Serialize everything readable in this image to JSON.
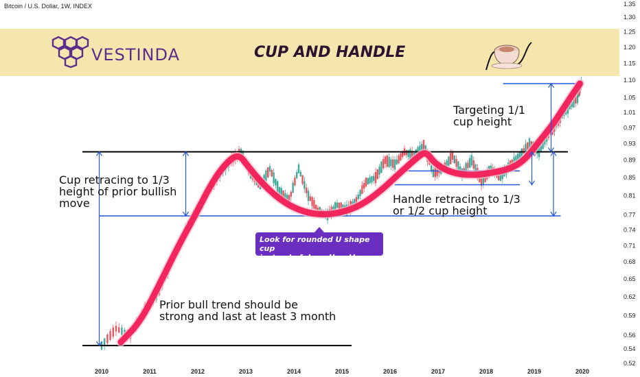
{
  "ticker": "Bitcoin / U.S. Dollar, 1W, INDEX",
  "banner": {
    "brand": "VESTINDA",
    "title": "CUP AND HANDLE",
    "brand_color": "#5e2c8c",
    "background": "#f5e6ad"
  },
  "annotations": {
    "cup_retracing": [
      "Cup retracing to 1/3",
      "height of prior bullish",
      "move"
    ],
    "targeting": [
      "Targeting 1/1",
      "cup height"
    ],
    "handle_retracing": [
      "Handle retracing to 1/3",
      "or 1/2 cup height"
    ],
    "prior_bull": [
      "Prior bull trend should be",
      "strong and last at least 3 month"
    ],
    "note": [
      "Look for rounded U shape cup",
      "instead of deep U or V shapes"
    ]
  },
  "chart_data": {
    "type": "line",
    "x_ticks": [
      "2010",
      "2011",
      "2012",
      "2013",
      "2014",
      "2015",
      "2016",
      "2017",
      "2018",
      "2019",
      "2020"
    ],
    "y_ticks": [
      "1.35",
      "1.30",
      "1.25",
      "1.20",
      "1.15",
      "1.10",
      "1.05",
      "1.01",
      "0.97",
      "0.93",
      "0.89",
      "0.85",
      "0.81",
      "0.77",
      "0.74",
      "0.71",
      "0.68",
      "0.65",
      "0.62",
      "0.59",
      "0.56",
      "0.54",
      "0.52"
    ],
    "y_scale": "log",
    "ylim": [
      0.52,
      1.35
    ],
    "xlim": [
      2009.8,
      2020.2
    ],
    "series": [
      {
        "color": "#f2265c",
        "points": [
          [
            2010.4,
            0.55
          ],
          [
            2010.8,
            0.58
          ],
          [
            2011.2,
            0.64
          ],
          [
            2011.6,
            0.71
          ],
          [
            2011.95,
            0.77
          ],
          [
            2012.3,
            0.84
          ],
          [
            2012.6,
            0.885
          ],
          [
            2012.85,
            0.905
          ],
          [
            2013.05,
            0.875
          ],
          [
            2013.4,
            0.83
          ],
          [
            2013.8,
            0.795
          ],
          [
            2014.2,
            0.776
          ],
          [
            2014.6,
            0.77
          ],
          [
            2015.0,
            0.775
          ],
          [
            2015.4,
            0.79
          ],
          [
            2015.8,
            0.82
          ],
          [
            2016.2,
            0.86
          ],
          [
            2016.6,
            0.9
          ],
          [
            2016.75,
            0.91
          ],
          [
            2016.95,
            0.88
          ],
          [
            2017.3,
            0.86
          ],
          [
            2017.7,
            0.855
          ],
          [
            2018.1,
            0.86
          ],
          [
            2018.5,
            0.87
          ],
          [
            2018.8,
            0.89
          ],
          [
            2019.1,
            0.935
          ],
          [
            2019.4,
            0.98
          ],
          [
            2019.7,
            1.04
          ],
          [
            2019.95,
            1.09
          ]
        ]
      }
    ],
    "price_path": [
      [
        2010.0,
        0.545
      ],
      [
        2010.3,
        0.57
      ],
      [
        2010.6,
        0.56
      ],
      [
        2010.9,
        0.6
      ],
      [
        2011.2,
        0.63
      ],
      [
        2011.5,
        0.69
      ],
      [
        2011.8,
        0.75
      ],
      [
        2012.1,
        0.8
      ],
      [
        2012.4,
        0.85
      ],
      [
        2012.7,
        0.89
      ],
      [
        2012.9,
        0.91
      ],
      [
        2013.1,
        0.86
      ],
      [
        2013.3,
        0.83
      ],
      [
        2013.5,
        0.87
      ],
      [
        2013.7,
        0.82
      ],
      [
        2013.9,
        0.8
      ],
      [
        2014.1,
        0.87
      ],
      [
        2014.3,
        0.81
      ],
      [
        2014.5,
        0.78
      ],
      [
        2014.7,
        0.77
      ],
      [
        2014.9,
        0.79
      ],
      [
        2015.1,
        0.78
      ],
      [
        2015.3,
        0.8
      ],
      [
        2015.5,
        0.84
      ],
      [
        2015.7,
        0.85
      ],
      [
        2015.9,
        0.89
      ],
      [
        2016.1,
        0.88
      ],
      [
        2016.3,
        0.91
      ],
      [
        2016.5,
        0.9
      ],
      [
        2016.7,
        0.925
      ],
      [
        2016.9,
        0.86
      ],
      [
        2017.1,
        0.87
      ],
      [
        2017.3,
        0.9
      ],
      [
        2017.5,
        0.86
      ],
      [
        2017.7,
        0.89
      ],
      [
        2017.9,
        0.84
      ],
      [
        2018.1,
        0.87
      ],
      [
        2018.3,
        0.85
      ],
      [
        2018.5,
        0.88
      ],
      [
        2018.7,
        0.9
      ],
      [
        2018.9,
        0.93
      ],
      [
        2019.1,
        0.91
      ],
      [
        2019.3,
        0.95
      ],
      [
        2019.5,
        0.99
      ],
      [
        2019.7,
        1.02
      ],
      [
        2019.9,
        1.05
      ],
      [
        2020.0,
        1.1
      ]
    ],
    "levels": [
      {
        "name": "cup_rim",
        "y": 0.91,
        "x": [
          2009.6,
          2019.7
        ],
        "color": "#000000"
      },
      {
        "name": "prior_low",
        "y": 0.545,
        "x": [
          2009.6,
          2015.2
        ],
        "color": "#000000"
      },
      {
        "name": "cup_bottom",
        "y": 0.768,
        "x": [
          2009.95,
          2019.55
        ],
        "color": "#2456d6"
      },
      {
        "name": "target",
        "y": 1.09,
        "x": [
          2018.35,
          2020.0
        ],
        "color": "#2456d6"
      },
      {
        "name": "handle_top",
        "y": 0.865,
        "x": [
          2016.3,
          2018.7
        ],
        "color": "#2456d6"
      },
      {
        "name": "handle_low",
        "y": 0.834,
        "x": [
          2016.1,
          2018.7
        ],
        "color": "#2456d6"
      }
    ],
    "measures": [
      {
        "x": 2009.95,
        "from": 0.545,
        "to": 0.91
      },
      {
        "x": 2011.75,
        "from": 0.768,
        "to": 0.91
      },
      {
        "x": 2018.95,
        "from": 0.834,
        "to": 0.91
      },
      {
        "x": 2019.4,
        "from": 0.768,
        "to": 0.91
      },
      {
        "x": 2019.35,
        "from": 0.91,
        "to": 1.09
      }
    ]
  }
}
